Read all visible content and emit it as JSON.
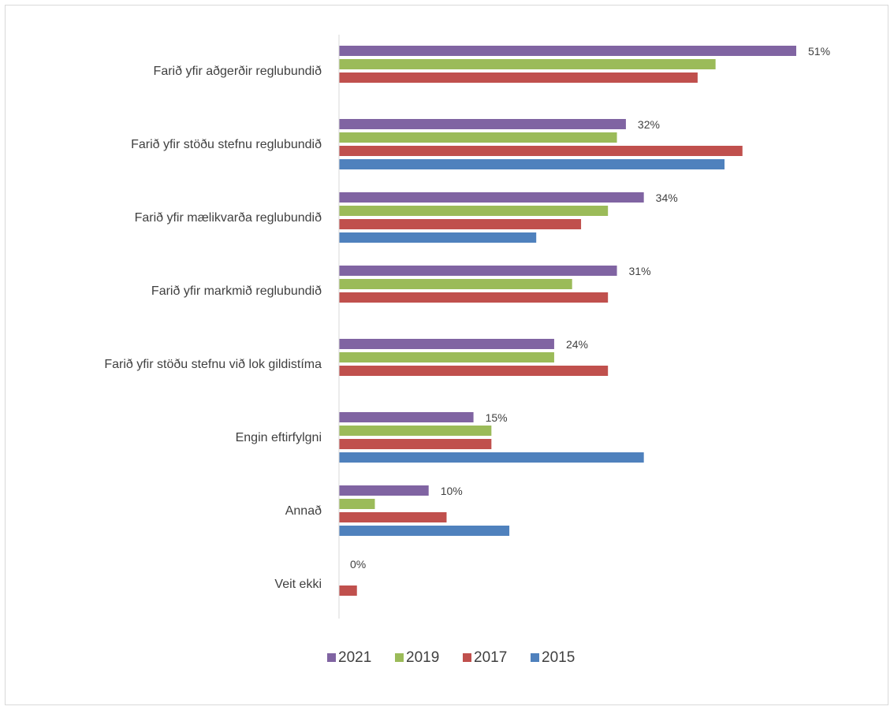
{
  "chart_data": {
    "type": "bar",
    "orientation": "horizontal",
    "categories": [
      "Farið yfir aðgerðir reglubundið",
      "Farið yfir stöðu stefnu reglubundið",
      "Farið yfir mælikvarða reglubundið",
      "Farið yfir markmið reglubundið",
      "Farið yfir stöðu stefnu við lok gildistíma",
      "Engin eftirfylgni",
      "Annað",
      "Veit ekki"
    ],
    "series": [
      {
        "name": "2021",
        "color": "#8064a2",
        "values": [
          51,
          32,
          34,
          31,
          24,
          15,
          10,
          0
        ],
        "labels": [
          "51%",
          "32%",
          "34%",
          "31%",
          "24%",
          "15%",
          "10%",
          "0%"
        ]
      },
      {
        "name": "2019",
        "color": "#9bbb59",
        "values": [
          42,
          31,
          30,
          26,
          24,
          17,
          4,
          0
        ],
        "labels": []
      },
      {
        "name": "2017",
        "color": "#c0504d",
        "values": [
          40,
          45,
          27,
          30,
          30,
          17,
          12,
          2
        ],
        "labels": []
      },
      {
        "name": "2015",
        "color": "#4f81bd",
        "values": [
          null,
          43,
          22,
          null,
          null,
          34,
          19,
          null
        ],
        "labels": []
      }
    ],
    "xlim": [
      0,
      51
    ],
    "legend_position": "bottom",
    "grid": false
  }
}
